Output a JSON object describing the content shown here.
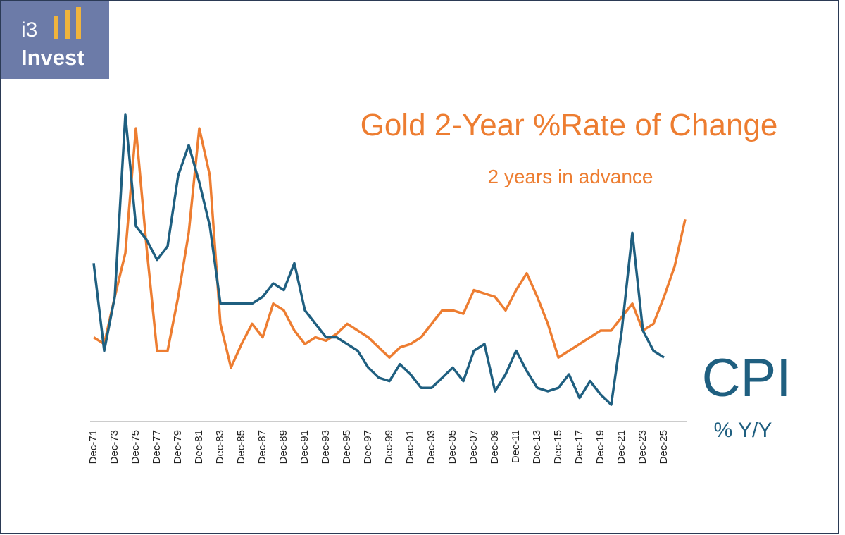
{
  "logo": {
    "top": "i3",
    "bottom": "Invest"
  },
  "chart_data": {
    "type": "line",
    "categories": [
      "Dec-71",
      null,
      "Dec-73",
      null,
      "Dec-75",
      null,
      "Dec-77",
      null,
      "Dec-79",
      null,
      "Dec-81",
      null,
      "Dec-83",
      null,
      "Dec-85",
      null,
      "Dec-87",
      null,
      "Dec-89",
      null,
      "Dec-91",
      null,
      "Dec-93",
      null,
      "Dec-95",
      null,
      "Dec-97",
      null,
      "Dec-99",
      null,
      "Dec-01",
      null,
      "Dec-03",
      null,
      "Dec-05",
      null,
      "Dec-07",
      null,
      "Dec-09",
      null,
      "Dec-11",
      null,
      "Dec-13",
      null,
      "Dec-15",
      null,
      "Dec-17",
      null,
      "Dec-19",
      null,
      "Dec-21",
      null,
      "Dec-23",
      null,
      "Dec-25",
      null,
      null
    ],
    "series": [
      {
        "name": "CPI",
        "annotation": "% Y/Y",
        "color": "#1f5f80",
        "values": [
          47,
          21,
          37,
          91,
          58,
          54,
          48,
          52,
          73,
          82,
          71,
          58,
          35,
          35,
          35,
          35,
          37,
          41,
          39,
          47,
          33,
          29,
          25,
          25,
          23,
          21,
          16,
          13,
          12,
          17,
          14,
          10,
          10,
          13,
          16,
          12,
          21,
          23,
          9,
          14,
          21,
          15,
          10,
          9,
          10,
          14,
          7,
          12,
          8,
          5,
          27,
          56,
          27,
          21,
          19,
          null,
          null
        ]
      },
      {
        "name": "Gold 2-Year %Rate of Change",
        "annotation": "2 years in advance",
        "color": "#ed7d31",
        "values": [
          25,
          23,
          37,
          50,
          87,
          52,
          21,
          21,
          37,
          56,
          87,
          73,
          29,
          16,
          23,
          29,
          25,
          35,
          33,
          27,
          23,
          25,
          24,
          26,
          29,
          27,
          25,
          22,
          19,
          22,
          23,
          25,
          29,
          33,
          33,
          32,
          39,
          38,
          37,
          33,
          39,
          44,
          37,
          29,
          19,
          21,
          23,
          25,
          27,
          27,
          31,
          35,
          27,
          29,
          37,
          46,
          60
        ]
      }
    ],
    "ylim": [
      0,
      100
    ]
  }
}
